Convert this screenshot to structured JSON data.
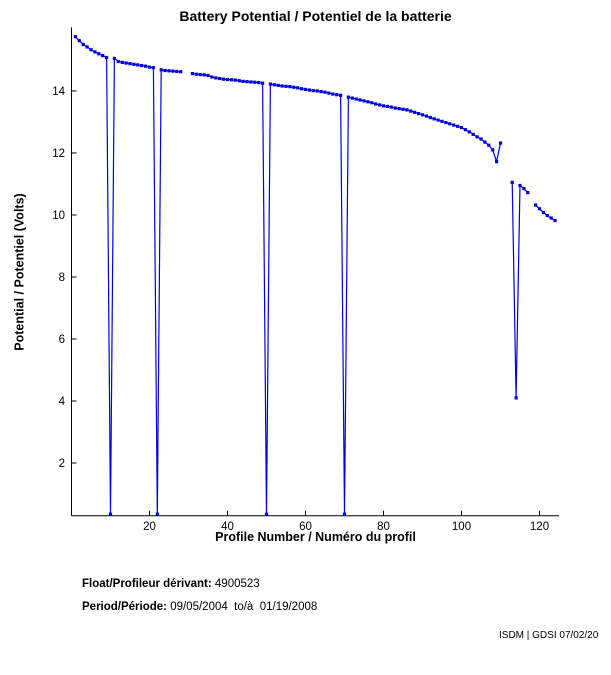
{
  "chart_data": {
    "type": "line",
    "title": "Battery Potential / Potentiel de la batterie",
    "xlabel": "Profile Number / Numéro du profil",
    "ylabel": "Potential / Potentiel (Volts)",
    "xlim": [
      0,
      125
    ],
    "ylim": [
      0.3,
      16.05
    ],
    "xticks": [
      20,
      40,
      60,
      80,
      100,
      120
    ],
    "yticks": [
      2,
      4,
      6,
      8,
      10,
      12,
      14
    ],
    "grid": false,
    "legend": "none",
    "line_color": "#0000dd",
    "marker": "square",
    "series": [
      {
        "name": "battery-potential-volts",
        "points": [
          [
            1,
            15.75
          ],
          [
            2,
            15.62
          ],
          [
            3,
            15.5
          ],
          [
            4,
            15.42
          ],
          [
            5,
            15.33
          ],
          [
            6,
            15.26
          ],
          [
            7,
            15.2
          ],
          [
            8,
            15.14
          ],
          [
            9,
            15.08
          ],
          [
            10,
            0.35
          ],
          [
            11,
            15.05
          ],
          [
            12,
            14.95
          ],
          [
            13,
            14.92
          ],
          [
            14,
            14.9
          ],
          [
            15,
            14.88
          ],
          [
            16,
            14.86
          ],
          [
            17,
            14.84
          ],
          [
            18,
            14.82
          ],
          [
            19,
            14.8
          ],
          [
            20,
            14.77
          ],
          [
            21,
            14.75
          ],
          [
            22,
            0.35
          ],
          [
            23,
            14.68
          ],
          [
            24,
            14.66
          ],
          [
            25,
            14.65
          ],
          [
            26,
            14.64
          ],
          [
            27,
            14.63
          ],
          [
            28,
            14.62
          ],
          [
            29,
            null
          ],
          [
            30,
            null
          ],
          [
            31,
            14.56
          ],
          [
            32,
            14.54
          ],
          [
            33,
            14.53
          ],
          [
            34,
            14.52
          ],
          [
            35,
            14.5
          ],
          [
            36,
            14.45
          ],
          [
            37,
            14.42
          ],
          [
            38,
            14.4
          ],
          [
            39,
            14.38
          ],
          [
            40,
            14.37
          ],
          [
            41,
            14.36
          ],
          [
            42,
            14.35
          ],
          [
            43,
            14.33
          ],
          [
            44,
            14.31
          ],
          [
            45,
            14.3
          ],
          [
            46,
            14.29
          ],
          [
            47,
            14.28
          ],
          [
            48,
            14.27
          ],
          [
            49,
            14.25
          ],
          [
            50,
            0.35
          ],
          [
            51,
            14.22
          ],
          [
            52,
            14.2
          ],
          [
            53,
            14.18
          ],
          [
            54,
            14.16
          ],
          [
            55,
            14.15
          ],
          [
            56,
            14.14
          ],
          [
            57,
            14.12
          ],
          [
            58,
            14.1
          ],
          [
            59,
            14.07
          ],
          [
            60,
            14.05
          ],
          [
            61,
            14.03
          ],
          [
            62,
            14.01
          ],
          [
            63,
            14.0
          ],
          [
            64,
            13.98
          ],
          [
            65,
            13.96
          ],
          [
            66,
            13.93
          ],
          [
            67,
            13.9
          ],
          [
            68,
            13.88
          ],
          [
            69,
            13.86
          ],
          [
            70,
            0.35
          ],
          [
            71,
            13.8
          ],
          [
            72,
            13.77
          ],
          [
            73,
            13.74
          ],
          [
            74,
            13.71
          ],
          [
            75,
            13.68
          ],
          [
            76,
            13.65
          ],
          [
            77,
            13.62
          ],
          [
            78,
            13.58
          ],
          [
            79,
            13.55
          ],
          [
            80,
            13.52
          ],
          [
            81,
            13.5
          ],
          [
            82,
            13.48
          ],
          [
            83,
            13.45
          ],
          [
            84,
            13.43
          ],
          [
            85,
            13.41
          ],
          [
            86,
            13.39
          ],
          [
            87,
            13.35
          ],
          [
            88,
            13.31
          ],
          [
            89,
            13.27
          ],
          [
            90,
            13.23
          ],
          [
            91,
            13.19
          ],
          [
            92,
            13.14
          ],
          [
            93,
            13.1
          ],
          [
            94,
            13.06
          ],
          [
            95,
            13.02
          ],
          [
            96,
            12.98
          ],
          [
            97,
            12.94
          ],
          [
            98,
            12.9
          ],
          [
            99,
            12.86
          ],
          [
            100,
            12.82
          ],
          [
            101,
            12.75
          ],
          [
            102,
            12.68
          ],
          [
            103,
            12.6
          ],
          [
            104,
            12.52
          ],
          [
            105,
            12.45
          ],
          [
            106,
            12.35
          ],
          [
            107,
            12.25
          ],
          [
            108,
            12.1
          ],
          [
            109,
            11.72
          ],
          [
            110,
            12.32
          ],
          [
            111,
            null
          ],
          [
            112,
            null
          ],
          [
            113,
            11.05
          ],
          [
            114,
            4.1
          ],
          [
            115,
            10.95
          ],
          [
            116,
            10.85
          ],
          [
            117,
            10.72
          ],
          [
            118,
            null
          ],
          [
            119,
            10.32
          ],
          [
            120,
            10.2
          ],
          [
            121,
            10.08
          ],
          [
            122,
            9.98
          ],
          [
            123,
            9.9
          ],
          [
            124,
            9.82
          ]
        ]
      }
    ]
  },
  "footer": {
    "float_label": "Float/Profileur dérivant:",
    "float_value": " 4900523",
    "period_label": "Period/Période:",
    "period_value": " 09/05/2004  to/à  01/19/2008"
  },
  "credit": "ISDM | GDSI 07/02/20"
}
